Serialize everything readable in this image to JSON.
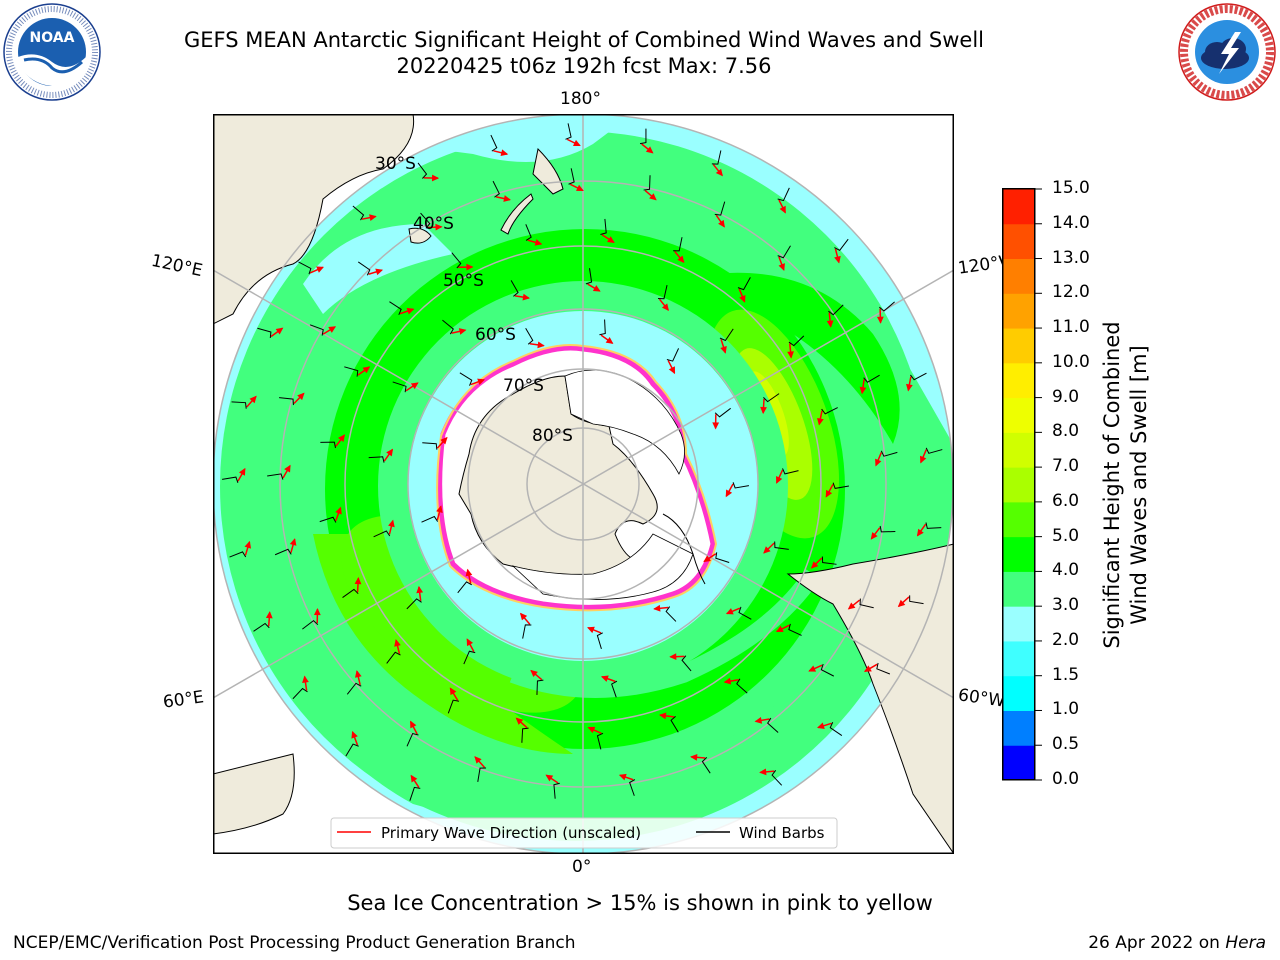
{
  "header": {
    "title_line1": "GEFS MEAN Antarctic Significant Height of Combined Wind Waves and Swell",
    "title_line2": "20220425 t06z 192h fcst   Max: 7.56"
  },
  "logos": {
    "left": {
      "name": "noaa-logo",
      "text": "NOAA",
      "ring_text": "NATIONAL OCEANIC AND ATMOSPHERIC ADMINISTRATION · U.S. DEPARTMENT OF COMMERCE"
    },
    "right": {
      "name": "nws-logo",
      "ring_text": "NATIONAL WEATHER SERVICE"
    }
  },
  "map": {
    "longitude_labels": {
      "top": "180°",
      "bottom": "0°",
      "upper_left": "120°E",
      "upper_right": "120°W",
      "lower_left": "60°E",
      "lower_right": "60°W"
    },
    "latitude_labels": [
      "30°S",
      "40°S",
      "50°S",
      "60°S",
      "70°S",
      "80°S"
    ],
    "legend": {
      "wave_label": "Primary Wave Direction (unscaled)",
      "barb_label": "Wind Barbs",
      "wave_color": "#ff0000",
      "barb_color": "#000000"
    },
    "colors": {
      "land": "#efebdc",
      "ice_shelf": "#ffffff",
      "grid": "#b4b4b4",
      "sea_ice_edge": "#ff33cc"
    }
  },
  "colorbar": {
    "label_line1": "Significant Height of Combined",
    "label_line2": "Wind Waves and Swell [m]",
    "ticks": [
      "0.0",
      "0.5",
      "1.0",
      "1.5",
      "2.0",
      "3.0",
      "4.0",
      "5.0",
      "6.0",
      "7.0",
      "8.0",
      "9.0",
      "10.0",
      "11.0",
      "12.0",
      "13.0",
      "14.0",
      "15.0"
    ],
    "colors": [
      "#0000ff",
      "#007fff",
      "#00ffff",
      "#3fffff",
      "#9affff",
      "#42ff7e",
      "#00ff00",
      "#55ff00",
      "#aaff00",
      "#d0ff00",
      "#eeff00",
      "#ffee00",
      "#ffcc00",
      "#ffa200",
      "#ff7f00",
      "#ff5000",
      "#ff2000"
    ]
  },
  "footer": {
    "sea_ice_note": "Sea Ice Concentration > 15% is shown in pink to yellow",
    "credit_left": "NCEP/EMC/Verification Post Processing Product Generation Branch",
    "credit_date": "26 Apr 2022 on",
    "credit_host": "Hera"
  }
}
